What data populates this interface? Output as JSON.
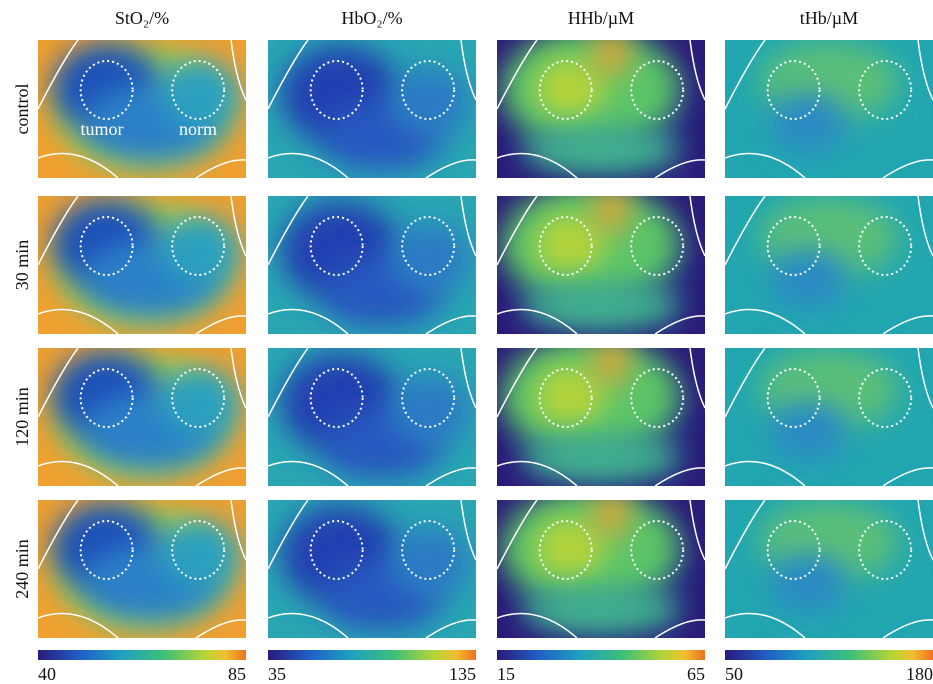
{
  "columns": [
    {
      "title": "StO₂/%",
      "colorbar": {
        "min": 40,
        "max": 85
      }
    },
    {
      "title": "HbO₂/%",
      "colorbar": {
        "min": 35,
        "max": 135
      }
    },
    {
      "title": "HHb/µM",
      "colorbar": {
        "min": 15,
        "max": 65
      }
    },
    {
      "title": "tHb/µM",
      "colorbar": {
        "min": 50,
        "max": 180
      }
    }
  ],
  "rows": [
    "control",
    "30 min",
    "120 min",
    "240 min"
  ],
  "annotations": {
    "tumor": "tumor",
    "norm": "norm"
  }
}
